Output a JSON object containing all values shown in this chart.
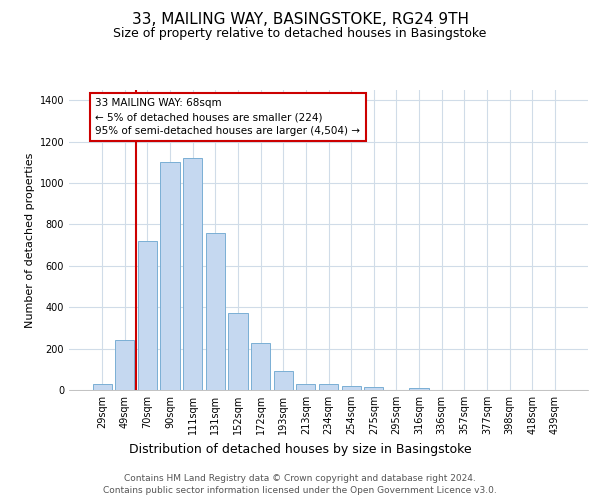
{
  "title": "33, MAILING WAY, BASINGSTOKE, RG24 9TH",
  "subtitle": "Size of property relative to detached houses in Basingstoke",
  "xlabel": "Distribution of detached houses by size in Basingstoke",
  "ylabel": "Number of detached properties",
  "categories": [
    "29sqm",
    "49sqm",
    "70sqm",
    "90sqm",
    "111sqm",
    "131sqm",
    "152sqm",
    "172sqm",
    "193sqm",
    "213sqm",
    "234sqm",
    "254sqm",
    "275sqm",
    "295sqm",
    "316sqm",
    "336sqm",
    "357sqm",
    "377sqm",
    "398sqm",
    "418sqm",
    "439sqm"
  ],
  "values": [
    30,
    240,
    720,
    1100,
    1120,
    760,
    370,
    225,
    90,
    30,
    30,
    20,
    15,
    0,
    10,
    0,
    0,
    0,
    0,
    0,
    0
  ],
  "bar_color": "#c5d8f0",
  "bar_edge_color": "#7aafd4",
  "vline_x": 2,
  "vline_color": "#cc0000",
  "annotation_text": "33 MAILING WAY: 68sqm\n← 5% of detached houses are smaller (224)\n95% of semi-detached houses are larger (4,504) →",
  "annotation_box_facecolor": "#ffffff",
  "annotation_box_edgecolor": "#cc0000",
  "ylim": [
    0,
    1450
  ],
  "yticks": [
    0,
    200,
    400,
    600,
    800,
    1000,
    1200,
    1400
  ],
  "footer_line1": "Contains HM Land Registry data © Crown copyright and database right 2024.",
  "footer_line2": "Contains public sector information licensed under the Open Government Licence v3.0.",
  "bg_color": "#ffffff",
  "plot_bg_color": "#ffffff",
  "grid_color": "#d0dce8",
  "title_fontsize": 11,
  "subtitle_fontsize": 9,
  "xlabel_fontsize": 9,
  "ylabel_fontsize": 8,
  "tick_fontsize": 7,
  "annotation_fontsize": 7.5,
  "footer_fontsize": 6.5
}
